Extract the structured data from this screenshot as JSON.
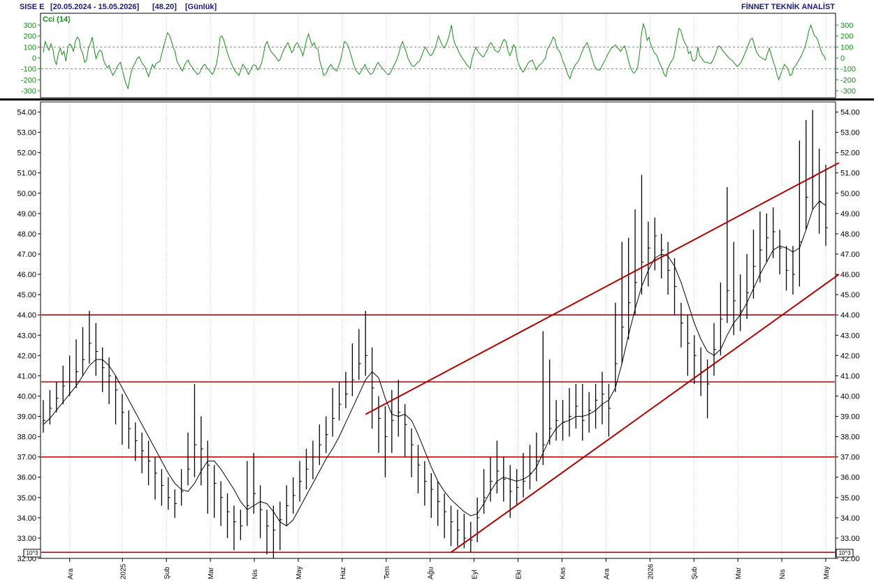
{
  "header": {
    "symbol": "SISE  E",
    "range": "[20.05.2024 - 15.05.2026]",
    "last": "[48.20]",
    "period": "[Günlük]",
    "brand": "FİNNET TEKNİK ANALİST"
  },
  "indicator": {
    "label": "Cci (14)",
    "ticks": [
      "300",
      "200",
      "100",
      "0",
      "-100",
      "-200",
      "-300"
    ],
    "tick_values": [
      300,
      200,
      100,
      0,
      -100,
      -200,
      -300
    ],
    "levels": [
      100,
      -100
    ],
    "range": [
      -300,
      300
    ],
    "color": "#1a8a1a",
    "values": [
      50,
      150,
      110,
      70,
      130,
      90,
      -20,
      -60,
      40,
      90,
      30,
      60,
      -30,
      90,
      130,
      110,
      60,
      150,
      190,
      170,
      80,
      40,
      -40,
      -20,
      90,
      130,
      190,
      90,
      -10,
      40,
      70,
      60,
      -20,
      -60,
      -90,
      -70,
      -120,
      -160,
      -130,
      -90,
      -60,
      -40,
      -110,
      -180,
      -240,
      -280,
      -190,
      -110,
      -70,
      -40,
      0,
      10,
      -30,
      -60,
      -80,
      -130,
      -170,
      -110,
      -60,
      -90,
      -50,
      -40,
      -30,
      40,
      110,
      170,
      230,
      210,
      160,
      100,
      60,
      -30,
      -60,
      -90,
      -120,
      -70,
      -40,
      -20,
      -60,
      -80,
      -110,
      -130,
      -150,
      -140,
      -100,
      -70,
      -60,
      -90,
      -110,
      -130,
      -150,
      -110,
      -60,
      40,
      190,
      200,
      160,
      90,
      40,
      -10,
      -50,
      -90,
      -120,
      -140,
      -160,
      -110,
      -60,
      -80,
      -110,
      -150,
      -120,
      -80,
      -60,
      -70,
      -110,
      -90,
      -50,
      30,
      120,
      150,
      100,
      60,
      40,
      20,
      0,
      -30,
      -10,
      40,
      80,
      110,
      140,
      100,
      50,
      70,
      120,
      140,
      110,
      70,
      20,
      90,
      170,
      220,
      160,
      110,
      140,
      90,
      80,
      -30,
      -90,
      -160,
      -150,
      -120,
      -80,
      -60,
      -90,
      -110,
      -120,
      -70,
      -20,
      60,
      150,
      140,
      110,
      60,
      0,
      -60,
      -110,
      -130,
      -150,
      -120,
      -90,
      -60,
      -100,
      -130,
      -150,
      -140,
      -110,
      -70,
      -40,
      -70,
      -90,
      -110,
      -130,
      -150,
      -150,
      -120,
      -80,
      -50,
      -10,
      40,
      110,
      150,
      100,
      50,
      -10,
      -40,
      -70,
      -80,
      -60,
      -40,
      -30,
      10,
      60,
      100,
      70,
      40,
      20,
      40,
      80,
      130,
      200,
      160,
      120,
      90,
      120,
      160,
      220,
      300,
      180,
      120,
      90,
      50,
      20,
      -10,
      -30,
      -60,
      -80,
      -90,
      0,
      50,
      100,
      60,
      40,
      20,
      10,
      40,
      70,
      120,
      140,
      110,
      70,
      60,
      50,
      90,
      140,
      170,
      150,
      70,
      20,
      60,
      120,
      90,
      -20,
      -70,
      -100,
      -130,
      -110,
      -70,
      -40,
      -30,
      -20,
      -60,
      -110,
      -80,
      -60,
      -50,
      -20,
      0,
      80,
      110,
      140,
      190,
      170,
      90,
      70,
      40,
      -20,
      -60,
      -110,
      -160,
      -190,
      -130,
      -90,
      -60,
      -40,
      -10,
      40,
      80,
      110,
      140,
      100,
      40,
      -20,
      -70,
      -100,
      -110,
      -110,
      -70,
      -40,
      -10,
      30,
      60,
      90,
      100,
      120,
      100,
      80,
      60,
      90,
      110,
      60,
      -20,
      -80,
      -120,
      -140,
      -120,
      -80,
      40,
      220,
      310,
      260,
      160,
      190,
      120,
      80,
      40,
      30,
      -20,
      -60,
      -100,
      -150,
      -170,
      -100,
      -60,
      -30,
      0,
      80,
      190,
      270,
      250,
      180,
      140,
      110,
      40,
      60,
      -20,
      -30,
      -10,
      100,
      20,
      0,
      -30,
      -40,
      -40,
      -50,
      -50,
      -20,
      20,
      70,
      110,
      100,
      70,
      50,
      30,
      10,
      -10,
      -20,
      -40,
      -60,
      -80,
      -60,
      -40,
      0,
      40,
      80,
      130,
      170,
      180,
      120,
      60,
      30,
      10,
      0,
      -10,
      -20,
      40,
      90,
      30,
      -30,
      -80,
      -150,
      -200,
      -150,
      -100,
      -60,
      -80,
      -110,
      -160,
      -150,
      -90,
      -70,
      -40,
      -10,
      20,
      60,
      100,
      170,
      250,
      300,
      250,
      200,
      190,
      150,
      90,
      40,
      20,
      -20
    ]
  },
  "price_axis": {
    "ticks": [
      "54.00",
      "53.00",
      "52.00",
      "51.00",
      "50.00",
      "49.00",
      "48.00",
      "47.00",
      "46.00",
      "45.00",
      "44.00",
      "43.00",
      "42.00",
      "41.00",
      "40.00",
      "39.00",
      "38.00",
      "37.00",
      "36.00",
      "35.00",
      "34.00",
      "33.00",
      "32.00"
    ],
    "tick_values": [
      54,
      53,
      52,
      51,
      50,
      49,
      48,
      47,
      46,
      45,
      44,
      43,
      42,
      41,
      40,
      39,
      38,
      37,
      36,
      35,
      34,
      33,
      32
    ],
    "range": [
      32,
      54.5
    ],
    "scale_badge": "10^3"
  },
  "time_axis": {
    "labels": [
      "Ara",
      "2025",
      "Şub",
      "Mar",
      "Nis",
      "May",
      "Haz",
      "Tem",
      "Ağu",
      "Eyl",
      "Eki",
      "Kas",
      "Ara",
      "2026",
      "Şub",
      "Mar",
      "Nis",
      "May"
    ],
    "label_positions": [
      3,
      9,
      14,
      19,
      24,
      29,
      34,
      39,
      44,
      49,
      54,
      59,
      64,
      69,
      74,
      79,
      84,
      89
    ]
  },
  "chart_data": {
    "type": "ohlc",
    "x_unit": "week index (date axis: Ara 2024 ... May 2026)",
    "ylim": [
      32,
      54.5
    ],
    "weekly_close": [
      38.8,
      39.4,
      39.9,
      40.5,
      40.7,
      41.2,
      41.8,
      42.6,
      42.2,
      41.4,
      41.0,
      40.3,
      39.2,
      38.4,
      37.8,
      37.3,
      36.8,
      36.2,
      35.6,
      35.0,
      34.7,
      35.3,
      36.4,
      37.6,
      37.4,
      36.6,
      35.7,
      35.0,
      34.3,
      33.8,
      33.6,
      34.6,
      35.2,
      34.4,
      33.6,
      33.4,
      33.9,
      34.6,
      35.1,
      35.8,
      36.4,
      37.0,
      37.6,
      38.1,
      38.9,
      39.6,
      40.1,
      40.8,
      41.6,
      42.0,
      40.4,
      38.9,
      38.0,
      38.8,
      39.2,
      38.6,
      37.6,
      36.6,
      35.8,
      35.4,
      34.8,
      34.3,
      33.8,
      33.4,
      33.0,
      32.9,
      34.0,
      35.0,
      35.8,
      36.3,
      35.9,
      35.3,
      35.5,
      35.8,
      36.2,
      36.8,
      37.6,
      38.4,
      38.8,
      38.7,
      39.0,
      39.5,
      38.8,
      39.3,
      39.8,
      40.1,
      39.4,
      41.6,
      43.4,
      44.6,
      45.6,
      46.6,
      47.3,
      47.9,
      47.2,
      46.2,
      45.4,
      43.6,
      42.6,
      42.0,
      41.2,
      40.6,
      42.3,
      43.8,
      45.2,
      44.7,
      44.2,
      45.1,
      46.4,
      47.2,
      47.8,
      48.1,
      47.3,
      46.2,
      46.0,
      47.6,
      49.8,
      50.8,
      49.6,
      48.3
    ],
    "weekly_high": [
      39.8,
      40.3,
      40.7,
      41.5,
      42.0,
      42.8,
      43.4,
      44.2,
      43.6,
      42.4,
      41.9,
      41.0,
      40.1,
      39.3,
      38.7,
      38.2,
      37.8,
      37.0,
      36.4,
      36.0,
      35.4,
      36.4,
      38.2,
      40.6,
      39.0,
      37.8,
      36.6,
      35.8,
      35.2,
      34.6,
      34.4,
      36.8,
      37.2,
      35.6,
      34.4,
      34.6,
      34.8,
      35.6,
      36.0,
      36.8,
      37.4,
      37.8,
      38.6,
      39.0,
      40.4,
      40.7,
      41.2,
      42.6,
      43.3,
      44.2,
      42.4,
      40.0,
      39.5,
      40.3,
      40.8,
      39.6,
      38.4,
      37.6,
      36.8,
      36.2,
      35.8,
      35.2,
      34.6,
      34.4,
      34.2,
      33.8,
      35.0,
      36.4,
      37.0,
      37.8,
      37.0,
      36.6,
      36.4,
      37.2,
      37.6,
      38.2,
      43.2,
      41.8,
      39.8,
      39.8,
      40.4,
      40.6,
      40.6,
      40.2,
      40.6,
      41.2,
      40.6,
      44.6,
      47.6,
      47.8,
      49.2,
      50.9,
      48.6,
      48.8,
      48.0,
      47.6,
      46.8,
      44.6,
      44.0,
      43.0,
      42.4,
      41.8,
      43.6,
      45.6,
      50.3,
      47.6,
      46.0,
      47.0,
      48.2,
      49.1,
      49.0,
      49.3,
      48.2,
      47.4,
      47.4,
      52.6,
      53.6,
      54.1,
      52.2,
      51.4
    ],
    "weekly_low": [
      38.2,
      38.6,
      39.2,
      39.6,
      40.0,
      40.4,
      41.0,
      41.6,
      41.0,
      40.2,
      39.6,
      38.6,
      37.6,
      37.4,
      36.8,
      36.2,
      35.6,
      34.9,
      34.6,
      34.4,
      34.0,
      34.6,
      35.6,
      36.0,
      35.6,
      34.2,
      34.0,
      33.6,
      33.0,
      32.4,
      32.9,
      33.6,
      34.2,
      33.0,
      32.2,
      32.0,
      32.4,
      33.6,
      34.2,
      34.8,
      35.4,
      35.9,
      36.6,
      37.2,
      38.0,
      38.8,
      39.4,
      40.0,
      40.8,
      41.0,
      38.4,
      37.2,
      36.0,
      37.2,
      38.0,
      37.0,
      36.0,
      35.2,
      34.6,
      34.0,
      33.6,
      33.0,
      32.6,
      32.6,
      32.5,
      32.3,
      32.8,
      34.2,
      34.8,
      35.2,
      34.8,
      34.0,
      34.6,
      35.0,
      35.4,
      35.8,
      36.6,
      37.6,
      37.8,
      37.8,
      38.0,
      38.4,
      37.8,
      38.2,
      38.4,
      38.6,
      38.0,
      40.2,
      41.6,
      42.8,
      44.0,
      45.0,
      45.4,
      46.2,
      45.8,
      45.0,
      44.0,
      42.4,
      41.0,
      40.6,
      40.0,
      38.9,
      41.0,
      42.0,
      43.6,
      43.0,
      43.2,
      43.8,
      44.8,
      45.6,
      46.6,
      46.8,
      46.0,
      45.2,
      45.0,
      45.4,
      48.2,
      49.2,
      48.0,
      47.4
    ],
    "moving_average": [
      38.6,
      38.9,
      39.3,
      39.7,
      40.1,
      40.5,
      41.0,
      41.5,
      41.8,
      41.8,
      41.5,
      41.0,
      40.4,
      39.8,
      39.2,
      38.6,
      38.0,
      37.4,
      36.8,
      36.2,
      35.7,
      35.4,
      35.3,
      35.7,
      36.3,
      36.8,
      36.8,
      36.4,
      35.9,
      35.4,
      34.8,
      34.4,
      34.6,
      34.8,
      34.7,
      34.3,
      33.8,
      33.6,
      33.9,
      34.5,
      35.1,
      35.7,
      36.3,
      36.9,
      37.4,
      38.0,
      38.7,
      39.4,
      40.1,
      40.8,
      41.2,
      40.9,
      39.9,
      39.1,
      39.0,
      39.1,
      38.8,
      38.1,
      37.3,
      36.5,
      35.8,
      35.3,
      34.9,
      34.6,
      34.3,
      34.1,
      34.2,
      34.7,
      35.3,
      35.8,
      36.0,
      35.9,
      35.8,
      35.9,
      36.1,
      36.5,
      37.2,
      37.9,
      38.4,
      38.7,
      38.8,
      39.0,
      39.0,
      39.1,
      39.3,
      39.6,
      39.8,
      40.4,
      41.6,
      43.0,
      44.3,
      45.4,
      46.2,
      46.8,
      47.0,
      46.9,
      46.4,
      45.6,
      44.6,
      43.6,
      42.8,
      42.2,
      42.0,
      42.3,
      43.0,
      43.6,
      44.0,
      44.6,
      45.3,
      46.0,
      46.6,
      47.2,
      47.4,
      47.3,
      47.1,
      47.3,
      48.2,
      49.2,
      49.6,
      49.4
    ],
    "horizontal_levels": [
      44.0,
      40.7,
      37.0,
      32.3
    ],
    "trend_channel": {
      "upper": [
        [
          49,
          39.1
        ],
        [
          121,
          51.5
        ]
      ],
      "lower": [
        [
          62,
          32.3
        ],
        [
          121,
          46.0
        ]
      ]
    }
  }
}
